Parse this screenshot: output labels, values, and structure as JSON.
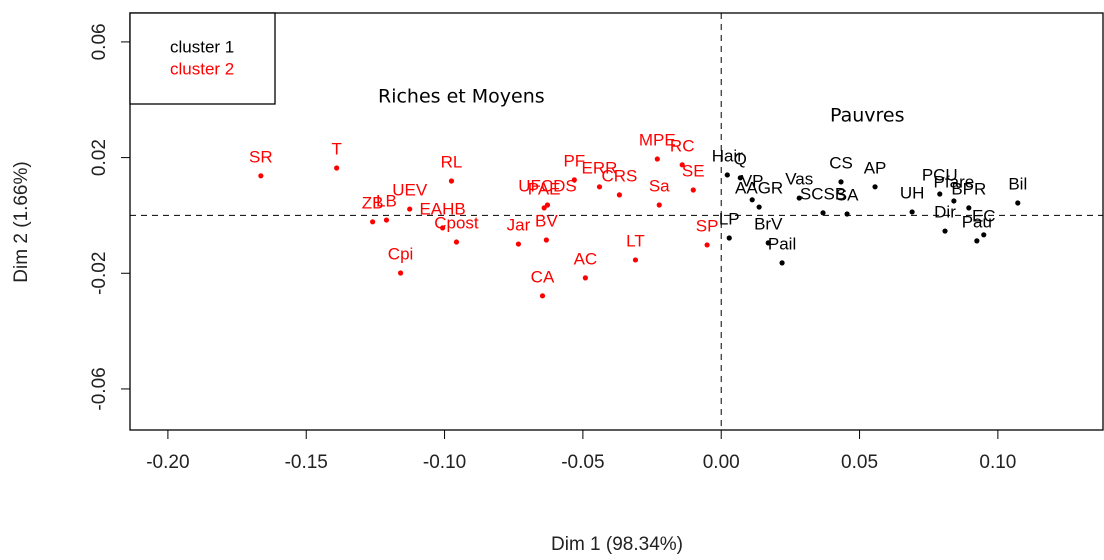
{
  "chart_data": {
    "type": "scatter",
    "x_label": "Dim 1 (98.34%)",
    "y_label": "Dim 2 (1.66%)",
    "xlim": [
      -0.2137,
      0.138
    ],
    "ylim": [
      -0.0742,
      0.07
    ],
    "xticks": [
      {
        "value": -0.2,
        "label": "-0.20"
      },
      {
        "value": -0.15,
        "label": "-0.15"
      },
      {
        "value": -0.1,
        "label": "-0.10"
      },
      {
        "value": -0.05,
        "label": "-0.05"
      },
      {
        "value": 0,
        "label": "0.00"
      },
      {
        "value": 0.05,
        "label": "0.05"
      },
      {
        "value": 0.1,
        "label": "0.10"
      }
    ],
    "yticks": [
      {
        "value": 0.06,
        "label": "0.06"
      },
      {
        "value": 0.02,
        "label": "0.02"
      },
      {
        "value": -0.02,
        "label": "-0.02"
      },
      {
        "value": -0.06,
        "label": "-0.06"
      }
    ],
    "reference_lines": {
      "x": 0,
      "y": 0
    },
    "legend": "top-left",
    "annotations": [
      "Riches et Moyens",
      "Pauvres"
    ],
    "series": [
      {
        "name": "cluster 1",
        "color": "#000000",
        "labels": [
          "Hair",
          "Q",
          "VP",
          "AAGR",
          "LP",
          "BrV",
          "Pail",
          "Vas",
          "SCSB",
          "CS",
          "AP",
          "SA",
          "UH",
          "PCU",
          "Pfare",
          "BPR",
          "Bil",
          "Dir",
          "Pau",
          "EC"
        ],
        "x": [
          0.0022,
          0.0069,
          0.0112,
          0.0137,
          0.0029,
          0.017,
          0.022,
          0.0282,
          0.0368,
          0.0433,
          0.0556,
          0.0455,
          0.069,
          0.079,
          0.0841,
          0.0895,
          0.1072,
          0.0809,
          0.0924,
          0.0949
        ],
        "values": [
          0.014,
          0.013,
          0.0054,
          0.0029,
          -0.0078,
          -0.0095,
          -0.0164,
          0.006,
          0.0009,
          0.0116,
          0.0099,
          0.0005,
          0.0012,
          0.0074,
          0.005,
          0.0026,
          0.0043,
          -0.0054,
          -0.0088,
          -0.0067
        ]
      },
      {
        "name": "cluster 2",
        "color": "#ff0000",
        "labels": [
          "SR",
          "T",
          "RL",
          "UEV",
          "ZB",
          "LB",
          "EAHB",
          "Cpost",
          "Cpi",
          "PF",
          "MPE",
          "RC",
          "UFCDS",
          "ERR",
          "PAE",
          "CRS",
          "Jar",
          "AC",
          "BV",
          "CA",
          "LT",
          "SE",
          "SP",
          "Sa"
        ],
        "x": [
          -0.1664,
          -0.139,
          -0.0975,
          -0.1126,
          -0.126,
          -0.121,
          -0.1007,
          -0.0957,
          -0.1159,
          -0.0531,
          -0.0231,
          -0.0141,
          -0.0628,
          -0.044,
          -0.064,
          -0.0368,
          -0.0733,
          -0.0491,
          -0.0632,
          -0.0646,
          -0.031,
          -0.0101,
          -0.0051,
          -0.0224
        ],
        "values": [
          0.0137,
          0.0164,
          0.0119,
          0.0022,
          -0.0022,
          -0.0016,
          -0.0043,
          -0.0092,
          -0.0199,
          0.0123,
          0.0195,
          0.0175,
          0.0036,
          0.0099,
          0.0026,
          0.0071,
          -0.0099,
          -0.0216,
          -0.0085,
          -0.0278,
          -0.0154,
          0.0088,
          -0.0102,
          0.0036
        ]
      }
    ]
  }
}
